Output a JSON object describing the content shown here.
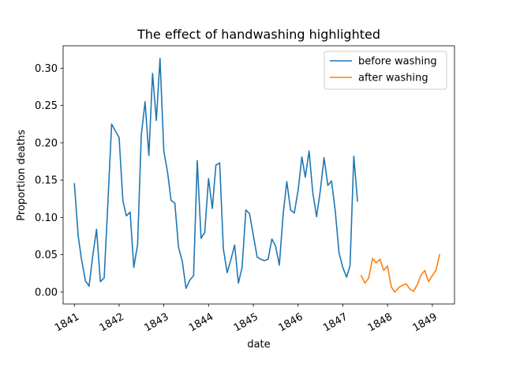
{
  "chart_data": {
    "type": "line",
    "title": "The effect of handwashing highlighted",
    "xlabel": "date",
    "ylabel": "Proportion deaths",
    "xlim": [
      "1840-10-01",
      "1849-07-01"
    ],
    "ylim": [
      -0.016,
      0.33
    ],
    "x_ticks": [
      "1841",
      "1842",
      "1843",
      "1844",
      "1845",
      "1846",
      "1847",
      "1848",
      "1849"
    ],
    "y_ticks": [
      "0.00",
      "0.05",
      "0.10",
      "0.15",
      "0.20",
      "0.25",
      "0.30"
    ],
    "legend": {
      "position": "top-right"
    },
    "series": [
      {
        "name": "before washing",
        "color": "#1f77b4",
        "x": [
          "1841-01-01",
          "1841-02-01",
          "1841-03-01",
          "1841-04-01",
          "1841-05-01",
          "1841-06-01",
          "1841-07-01",
          "1841-08-01",
          "1841-09-01",
          "1841-10-01",
          "1841-11-01",
          "1841-12-01",
          "1842-01-01",
          "1842-02-01",
          "1842-03-01",
          "1842-04-01",
          "1842-05-01",
          "1842-06-01",
          "1842-07-01",
          "1842-08-01",
          "1842-09-01",
          "1842-10-01",
          "1842-11-01",
          "1842-12-01",
          "1843-01-01",
          "1843-02-01",
          "1843-03-01",
          "1843-04-01",
          "1843-05-01",
          "1843-06-01",
          "1843-07-01",
          "1843-08-01",
          "1843-09-01",
          "1843-10-01",
          "1843-11-01",
          "1843-12-01",
          "1844-01-01",
          "1844-02-01",
          "1844-03-01",
          "1844-04-01",
          "1844-05-01",
          "1844-06-01",
          "1844-07-01",
          "1844-08-01",
          "1844-09-01",
          "1844-10-01",
          "1844-11-01",
          "1844-12-01",
          "1845-01-01",
          "1845-02-01",
          "1845-03-01",
          "1845-04-01",
          "1845-05-01",
          "1845-06-01",
          "1845-07-01",
          "1845-08-01",
          "1845-09-01",
          "1845-10-01",
          "1845-11-01",
          "1845-12-01",
          "1846-01-01",
          "1846-02-01",
          "1846-03-01",
          "1846-04-01",
          "1846-05-01",
          "1846-06-01",
          "1846-07-01",
          "1846-08-01",
          "1846-09-01",
          "1846-10-01",
          "1846-11-01",
          "1846-12-01",
          "1847-01-01",
          "1847-02-01",
          "1847-03-01",
          "1847-04-01",
          "1847-05-01"
        ],
        "values": [
          0.145,
          0.075,
          0.043,
          0.015,
          0.008,
          0.05,
          0.084,
          0.014,
          0.019,
          0.118,
          0.225,
          0.216,
          0.207,
          0.122,
          0.102,
          0.107,
          0.033,
          0.064,
          0.21,
          0.255,
          0.183,
          0.293,
          0.23,
          0.313,
          0.189,
          0.16,
          0.123,
          0.119,
          0.06,
          0.041,
          0.005,
          0.016,
          0.022,
          0.176,
          0.072,
          0.08,
          0.152,
          0.112,
          0.17,
          0.173,
          0.058,
          0.026,
          0.043,
          0.063,
          0.012,
          0.033,
          0.11,
          0.105,
          0.076,
          0.047,
          0.044,
          0.042,
          0.044,
          0.071,
          0.062,
          0.036,
          0.104,
          0.148,
          0.11,
          0.106,
          0.136,
          0.181,
          0.154,
          0.189,
          0.133,
          0.101,
          0.135,
          0.18,
          0.143,
          0.149,
          0.108,
          0.053,
          0.033,
          0.02,
          0.035,
          0.182,
          0.122
        ]
      },
      {
        "name": "after washing",
        "color": "#ff7f0e",
        "x": [
          "1847-06-01",
          "1847-07-01",
          "1847-08-01",
          "1847-09-01",
          "1847-10-01",
          "1847-11-01",
          "1847-12-01",
          "1848-01-01",
          "1848-02-01",
          "1848-03-01",
          "1848-04-01",
          "1848-05-01",
          "1848-06-01",
          "1848-07-01",
          "1848-08-01",
          "1848-09-01",
          "1848-10-01",
          "1848-11-01",
          "1848-12-01",
          "1849-01-01",
          "1849-02-01",
          "1849-03-01"
        ],
        "values": [
          0.022,
          0.012,
          0.019,
          0.045,
          0.039,
          0.044,
          0.029,
          0.035,
          0.007,
          0.0,
          0.006,
          0.009,
          0.011,
          0.004,
          0.001,
          0.01,
          0.023,
          0.029,
          0.014,
          0.022,
          0.03,
          0.05
        ]
      }
    ]
  }
}
